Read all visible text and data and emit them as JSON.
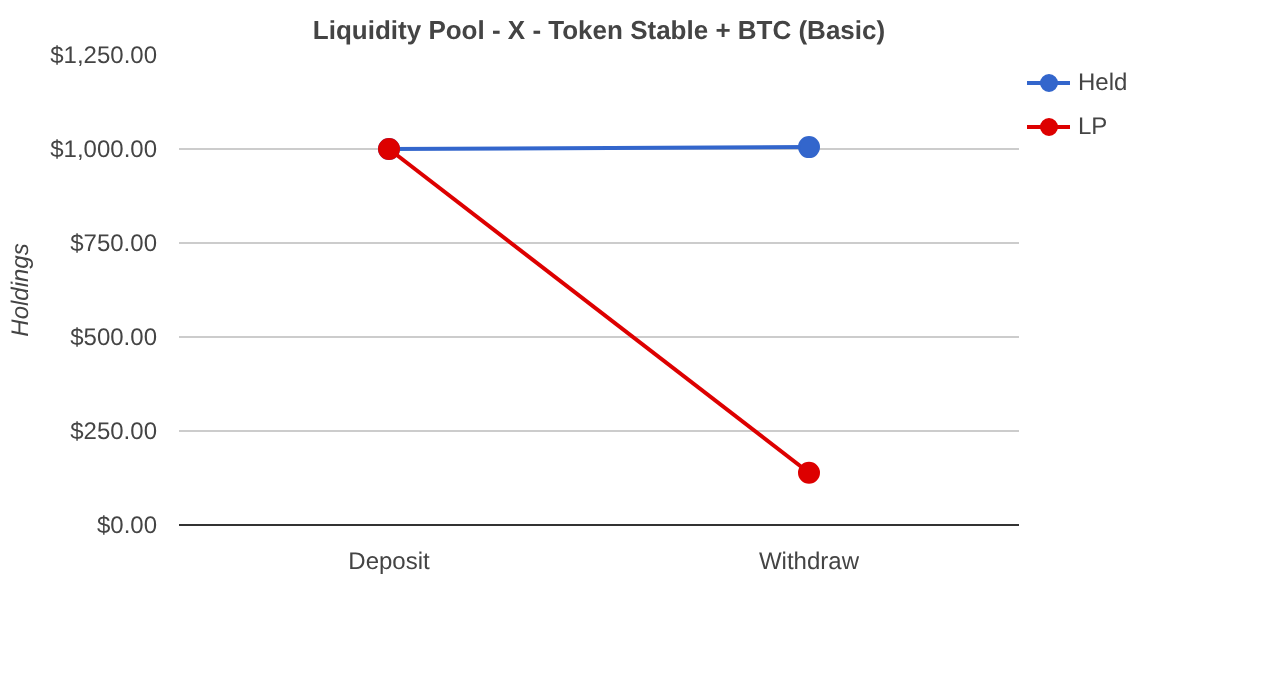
{
  "chart_data": {
    "type": "line",
    "title": "Liquidity Pool - X - Token Stable + BTC (Basic)",
    "ylabel": "Holdings",
    "categories": [
      "Deposit",
      "Withdraw"
    ],
    "series": [
      {
        "name": "Held",
        "color": "#3366cc",
        "values": [
          1000,
          1005
        ]
      },
      {
        "name": "LP",
        "color": "#dd0000",
        "values": [
          1000,
          139
        ]
      }
    ],
    "ylim": [
      0,
      1250
    ],
    "yticks": [
      {
        "value": 0,
        "label": "$0.00"
      },
      {
        "value": 250,
        "label": "$250.00"
      },
      {
        "value": 500,
        "label": "$500.00"
      },
      {
        "value": 750,
        "label": "$750.00"
      },
      {
        "value": 1000,
        "label": "$1,000.00"
      },
      {
        "value": 1250,
        "label": "$1,250.00"
      }
    ],
    "grid": "y",
    "legend": "right",
    "marker": "circle"
  }
}
